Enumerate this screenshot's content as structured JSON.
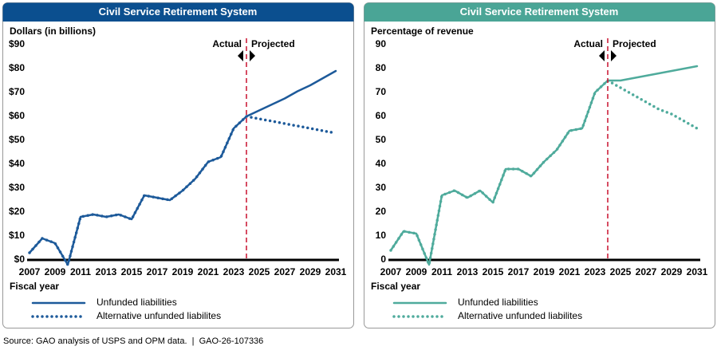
{
  "chart_data": [
    {
      "type": "line",
      "title": "Civil Service Retirement System",
      "header_color": "#0b4f8f",
      "ylabel": "Dollars (in billions)",
      "xlabel": "Fiscal year",
      "x": [
        2007,
        2008,
        2009,
        2010,
        2011,
        2012,
        2013,
        2014,
        2015,
        2016,
        2017,
        2018,
        2019,
        2020,
        2021,
        2022,
        2023,
        2024,
        2025,
        2026,
        2027,
        2028,
        2029,
        2030,
        2031
      ],
      "series": [
        {
          "name": "Unfunded liabilities",
          "color": "#1d5a9a",
          "style": "solid",
          "values": [
            3,
            9,
            7,
            -2,
            18,
            19,
            18,
            19,
            17,
            27,
            26,
            25,
            29,
            34,
            41,
            43,
            55,
            60,
            62.5,
            65,
            67.5,
            70.5,
            73,
            76,
            79
          ]
        },
        {
          "name": "Alternative unfunded liabilites",
          "color": "#1d5a9a",
          "style": "dotted",
          "values": [
            3,
            9,
            7,
            -2,
            18,
            19,
            18,
            19,
            17,
            27,
            26,
            25,
            29,
            34,
            41,
            43,
            55,
            60,
            59,
            58,
            57,
            56,
            55,
            54,
            53
          ]
        }
      ],
      "xlim": [
        2007,
        2031
      ],
      "xticks": [
        2007,
        2009,
        2011,
        2013,
        2015,
        2017,
        2019,
        2021,
        2023,
        2025,
        2027,
        2029,
        2031
      ],
      "ylim": [
        0,
        90
      ],
      "yticks": [
        {
          "value": 0,
          "label": "$0"
        },
        {
          "value": 10,
          "label": "$10"
        },
        {
          "value": 20,
          "label": "$20"
        },
        {
          "value": 30,
          "label": "$30"
        },
        {
          "value": 40,
          "label": "$40"
        },
        {
          "value": 50,
          "label": "$50"
        },
        {
          "value": 60,
          "label": "$60"
        },
        {
          "value": 70,
          "label": "$70"
        },
        {
          "value": 80,
          "label": "$80"
        },
        {
          "value": 90,
          "label": "$90"
        }
      ],
      "divider": 2024,
      "divider_left": "Actual",
      "divider_right": "Projected",
      "grid": false
    },
    {
      "type": "line",
      "title": "Civil Service Retirement System",
      "header_color": "#4aa596",
      "ylabel": "Percentage of revenue",
      "xlabel": "Fiscal year",
      "x": [
        2007,
        2008,
        2009,
        2010,
        2011,
        2012,
        2013,
        2014,
        2015,
        2016,
        2017,
        2018,
        2019,
        2020,
        2021,
        2022,
        2023,
        2024,
        2025,
        2026,
        2027,
        2028,
        2029,
        2030,
        2031
      ],
      "series": [
        {
          "name": "Unfunded liabilities",
          "color": "#4fab9c",
          "style": "solid",
          "values": [
            4,
            12,
            11,
            -2,
            27,
            29,
            26,
            29,
            24,
            38,
            38,
            35,
            41,
            46,
            54,
            55,
            70,
            75,
            75,
            76,
            77,
            78,
            79,
            80,
            81
          ]
        },
        {
          "name": "Alternative unfunded liabilites",
          "color": "#4fab9c",
          "style": "dotted",
          "values": [
            4,
            12,
            11,
            -2,
            27,
            29,
            26,
            29,
            24,
            38,
            38,
            35,
            41,
            46,
            54,
            55,
            70,
            75,
            72,
            69,
            66,
            63,
            61,
            58,
            55
          ]
        }
      ],
      "xlim": [
        2007,
        2031
      ],
      "xticks": [
        2007,
        2009,
        2011,
        2013,
        2015,
        2017,
        2019,
        2021,
        2023,
        2025,
        2027,
        2029,
        2031
      ],
      "ylim": [
        0,
        90
      ],
      "yticks": [
        0,
        10,
        20,
        30,
        40,
        50,
        60,
        70,
        80,
        90
      ],
      "divider": 2024,
      "divider_left": "Actual",
      "divider_right": "Projected",
      "grid": false
    }
  ],
  "source": "Source: GAO analysis of USPS and OPM data.  |  GAO-26-107336"
}
